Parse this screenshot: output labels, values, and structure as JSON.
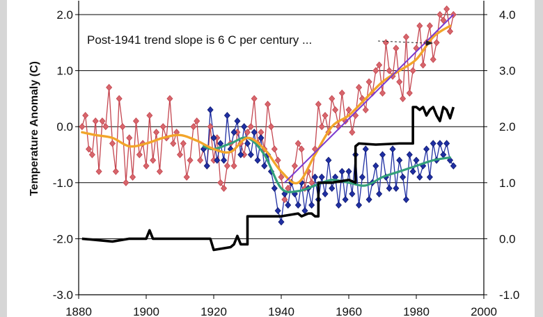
{
  "chart_data": {
    "type": "line",
    "title": "",
    "xlabel": "",
    "ylabel": "Temperature Anomaly (C)",
    "xlim": [
      1880,
      2000
    ],
    "ylim": [
      -3.0,
      2.0
    ],
    "y2lim": [
      -1.0,
      4.0
    ],
    "grid": "horizontal",
    "x_ticks": [
      "1880",
      "1900",
      "1920",
      "1940",
      "1960",
      "1980",
      "2000"
    ],
    "y_ticks": [
      "-3.0",
      "-2.0",
      "-1.0",
      "0.0",
      "1.0",
      "2.0"
    ],
    "y2_ticks": [
      "-1.0",
      "0.0",
      "1.0",
      "2.0",
      "3.0",
      "4.0"
    ],
    "annotation": "Post-1941 trend slope is 6 C per century ...",
    "colors": {
      "red": "#c4454f",
      "red_marker": "#d7666c",
      "blue": "#1f2fa3",
      "black": "#000000",
      "orange": "#f2a52a",
      "green": "#33a07a",
      "purple": "#7a3ad0"
    },
    "series": [
      {
        "key": "red",
        "axis": "left",
        "x": [
          1881,
          1882,
          1883,
          1884,
          1885,
          1886,
          1887,
          1888,
          1889,
          1890,
          1891,
          1892,
          1893,
          1894,
          1895,
          1896,
          1897,
          1898,
          1899,
          1900,
          1901,
          1902,
          1903,
          1904,
          1905,
          1906,
          1907,
          1908,
          1909,
          1910,
          1911,
          1912,
          1913,
          1914,
          1915,
          1916,
          1917,
          1918,
          1919,
          1920,
          1921,
          1922,
          1923,
          1924,
          1925,
          1926,
          1927,
          1928,
          1929,
          1930,
          1931,
          1932,
          1933,
          1934,
          1935,
          1936,
          1937,
          1938,
          1939,
          1940,
          1941,
          1942,
          1943,
          1944,
          1945,
          1946,
          1947,
          1948,
          1949,
          1950,
          1951,
          1952,
          1953,
          1954,
          1955,
          1956,
          1957,
          1958,
          1959,
          1960,
          1961,
          1962,
          1963,
          1964,
          1965,
          1966,
          1967,
          1968,
          1969,
          1970,
          1971,
          1972,
          1973,
          1974,
          1975,
          1976,
          1977,
          1978,
          1979,
          1980,
          1981,
          1982,
          1983,
          1984,
          1985,
          1986,
          1987,
          1988,
          1989,
          1990,
          1991
        ],
        "y": [
          0.0,
          0.2,
          -0.4,
          -0.5,
          0.1,
          -0.8,
          0.1,
          0.0,
          0.7,
          -0.3,
          -0.8,
          0.5,
          0.0,
          -1.0,
          -0.2,
          -0.9,
          0.1,
          -0.5,
          -0.3,
          -0.7,
          0.2,
          -0.6,
          -0.1,
          -0.8,
          0.0,
          -0.2,
          0.5,
          -0.3,
          -0.1,
          -0.5,
          -0.3,
          -0.9,
          -0.6,
          0.0,
          0.1,
          -0.6,
          -0.4,
          -0.7,
          0.0,
          -0.6,
          -0.2,
          -1.0,
          -1.1,
          -0.7,
          -0.3,
          -0.7,
          -0.1,
          -0.3,
          -0.5,
          -0.1,
          0.0,
          0.5,
          -0.3,
          -0.1,
          -0.4,
          0.4,
          0.0,
          -0.4,
          -0.6,
          -0.9,
          -1.3,
          -1.1,
          -1.0,
          -0.7,
          -0.3,
          -0.4,
          -1.1,
          -0.8,
          -1.0,
          -0.4,
          0.4,
          0.0,
          0.2,
          -0.1,
          0.5,
          0.3,
          0.0,
          0.6,
          0.1,
          0.3,
          -0.1,
          0.2,
          0.7,
          0.5,
          0.3,
          0.8,
          0.6,
          1.0,
          1.1,
          0.6,
          1.5,
          1.0,
          0.9,
          1.4,
          0.8,
          0.5,
          1.6,
          0.6,
          1.0,
          1.4,
          1.8,
          1.1,
          1.5,
          1.8,
          1.2,
          1.5,
          2.0,
          1.9,
          2.1,
          1.7,
          2.0
        ]
      },
      {
        "key": "blue",
        "axis": "left",
        "x": [
          1917,
          1918,
          1919,
          1920,
          1921,
          1922,
          1923,
          1924,
          1925,
          1926,
          1927,
          1928,
          1929,
          1930,
          1931,
          1932,
          1933,
          1934,
          1935,
          1936,
          1937,
          1938,
          1939,
          1940,
          1941,
          1942,
          1943,
          1944,
          1945,
          1946,
          1947,
          1948,
          1949,
          1950,
          1951,
          1952,
          1953,
          1954,
          1955,
          1956,
          1957,
          1958,
          1959,
          1960,
          1961,
          1962,
          1963,
          1964,
          1965,
          1966,
          1967,
          1968,
          1969,
          1970,
          1971,
          1972,
          1973,
          1974,
          1975,
          1976,
          1977,
          1978,
          1979,
          1980,
          1981,
          1982,
          1983,
          1984,
          1985,
          1986,
          1987,
          1988,
          1989,
          1990,
          1991
        ],
        "y": [
          -0.4,
          -0.7,
          0.3,
          -0.2,
          -0.6,
          -0.3,
          -0.6,
          0.2,
          -0.4,
          -0.1,
          0.1,
          -0.5,
          0.0,
          -0.3,
          -0.5,
          -0.1,
          -0.6,
          -0.2,
          -0.7,
          -0.5,
          -0.8,
          -1.1,
          -1.5,
          -1.7,
          -1.2,
          -1.4,
          -1.0,
          -1.2,
          -1.4,
          -1.0,
          -1.5,
          -1.1,
          -1.4,
          -0.9,
          -1.3,
          -0.9,
          -1.2,
          -0.6,
          -1.1,
          -0.9,
          -1.4,
          -0.8,
          -1.3,
          -0.8,
          -1.2,
          -0.5,
          -1.4,
          -0.9,
          -0.4,
          -1.3,
          -1.0,
          -0.7,
          -1.2,
          -0.5,
          -0.9,
          -1.1,
          -0.4,
          -1.1,
          -0.6,
          -0.9,
          -1.3,
          -0.5,
          -0.8,
          -0.6,
          -0.9,
          -0.7,
          -0.4,
          -0.9,
          -0.3,
          -0.6,
          -0.3,
          -0.5,
          -0.3,
          -0.6,
          -0.7
        ]
      },
      {
        "key": "black",
        "axis": "right",
        "x": [
          1881,
          1890,
          1895,
          1899,
          1900,
          1901,
          1902,
          1904,
          1910,
          1915,
          1919,
          1920,
          1920,
          1925,
          1926,
          1927,
          1928,
          1929,
          1930,
          1930,
          1931,
          1935,
          1940,
          1945,
          1946,
          1948,
          1949,
          1950,
          1951,
          1951,
          1952,
          1955,
          1960,
          1962,
          1962,
          1963,
          1968,
          1975,
          1979,
          1979,
          1980,
          1981,
          1982,
          1983,
          1984,
          1985,
          1986,
          1987,
          1988,
          1989,
          1990,
          1991
        ],
        "y": [
          0.0,
          -0.05,
          0.0,
          0.0,
          0.0,
          0.15,
          0.0,
          0.0,
          0.0,
          0.0,
          0.0,
          -0.2,
          -0.2,
          -0.15,
          -0.1,
          0.05,
          -0.1,
          -0.1,
          -0.1,
          0.4,
          0.4,
          0.4,
          0.4,
          0.45,
          0.4,
          0.45,
          0.45,
          0.4,
          0.4,
          1.0,
          1.0,
          1.0,
          1.05,
          1.0,
          1.65,
          1.7,
          1.68,
          1.7,
          1.7,
          2.35,
          2.35,
          2.3,
          2.35,
          2.2,
          2.3,
          2.35,
          2.2,
          2.1,
          2.35,
          2.3,
          2.15,
          2.35
        ]
      },
      {
        "key": "orange",
        "axis": "left",
        "x": [
          1881,
          1885,
          1890,
          1895,
          1900,
          1905,
          1910,
          1915,
          1920,
          1925,
          1930,
          1935,
          1940,
          1945,
          1950,
          1955,
          1960,
          1965,
          1970,
          1975,
          1980,
          1985,
          1990
        ],
        "y": [
          -0.1,
          -0.15,
          -0.2,
          -0.35,
          -0.3,
          -0.2,
          -0.15,
          -0.25,
          -0.4,
          -0.45,
          -0.2,
          -0.4,
          -0.8,
          -1.0,
          -0.5,
          0.0,
          0.2,
          0.5,
          0.8,
          1.0,
          1.2,
          1.6,
          1.8
        ]
      },
      {
        "key": "green",
        "axis": "left",
        "x": [
          1917,
          1920,
          1925,
          1930,
          1935,
          1940,
          1945,
          1950,
          1955,
          1960,
          1965,
          1970,
          1975,
          1980,
          1985,
          1990
        ],
        "y": [
          -0.35,
          -0.4,
          -0.3,
          -0.2,
          -0.5,
          -1.1,
          -1.15,
          -1.05,
          -0.95,
          -1.0,
          -1.05,
          -0.9,
          -0.8,
          -0.7,
          -0.6,
          -0.55
        ]
      },
      {
        "key": "purple",
        "axis": "left",
        "x": [
          1941,
          1991
        ],
        "y": [
          -1.0,
          2.0
        ]
      }
    ]
  }
}
